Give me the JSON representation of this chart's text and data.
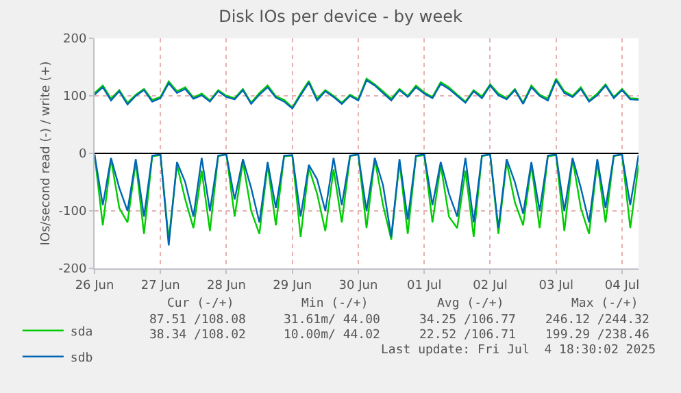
{
  "chart_data": {
    "type": "line",
    "title": "Disk IOs per device - by week",
    "ylabel": "IOs/second read (-) / write (+)",
    "x": [
      "2025-06-26T00:00",
      "2025-06-26T03:00",
      "2025-06-26T06:00",
      "2025-06-26T09:00",
      "2025-06-26T12:00",
      "2025-06-26T15:00",
      "2025-06-26T18:00",
      "2025-06-26T21:00",
      "2025-06-27T00:00",
      "2025-06-27T03:00",
      "2025-06-27T06:00",
      "2025-06-27T09:00",
      "2025-06-27T12:00",
      "2025-06-27T15:00",
      "2025-06-27T18:00",
      "2025-06-27T21:00",
      "2025-06-28T00:00",
      "2025-06-28T03:00",
      "2025-06-28T06:00",
      "2025-06-28T09:00",
      "2025-06-28T12:00",
      "2025-06-28T15:00",
      "2025-06-28T18:00",
      "2025-06-28T21:00",
      "2025-06-29T00:00",
      "2025-06-29T03:00",
      "2025-06-29T06:00",
      "2025-06-29T09:00",
      "2025-06-29T12:00",
      "2025-06-29T15:00",
      "2025-06-29T18:00",
      "2025-06-29T21:00",
      "2025-06-30T00:00",
      "2025-06-30T03:00",
      "2025-06-30T06:00",
      "2025-06-30T09:00",
      "2025-06-30T12:00",
      "2025-06-30T15:00",
      "2025-06-30T18:00",
      "2025-06-30T21:00",
      "2025-07-01T00:00",
      "2025-07-01T03:00",
      "2025-07-01T06:00",
      "2025-07-01T09:00",
      "2025-07-01T12:00",
      "2025-07-01T15:00",
      "2025-07-01T18:00",
      "2025-07-01T21:00",
      "2025-07-02T00:00",
      "2025-07-02T03:00",
      "2025-07-02T06:00",
      "2025-07-02T09:00",
      "2025-07-02T12:00",
      "2025-07-02T15:00",
      "2025-07-02T18:00",
      "2025-07-02T21:00",
      "2025-07-03T00:00",
      "2025-07-03T03:00",
      "2025-07-03T06:00",
      "2025-07-03T09:00",
      "2025-07-03T12:00",
      "2025-07-03T15:00",
      "2025-07-03T18:00",
      "2025-07-03T21:00",
      "2025-07-04T00:00",
      "2025-07-04T03:00",
      "2025-07-04T06:00"
    ],
    "series": [
      {
        "name": "sda",
        "color": "#00cc00",
        "values": [
          105,
          118,
          95,
          110,
          88,
          102,
          112,
          93,
          98,
          125,
          108,
          115,
          97,
          104,
          92,
          110,
          100,
          96,
          112,
          88,
          105,
          118,
          99,
          93,
          80,
          104,
          126,
          95,
          110,
          100,
          88,
          102,
          94,
          130,
          120,
          108,
          95,
          112,
          100,
          118,
          106,
          98,
          124,
          115,
          102,
          90,
          110,
          99,
          120,
          104,
          96,
          112,
          88,
          118,
          102,
          95,
          130,
          108,
          100,
          115,
          92,
          104,
          120,
          98,
          112,
          96,
          95
        ]
      },
      {
        "color": "#00cc00",
        "values": [
          -2,
          -125,
          -10,
          -95,
          -120,
          -15,
          -140,
          -5,
          -3,
          -150,
          -20,
          -80,
          -130,
          -30,
          -135,
          -5,
          -2,
          -110,
          -15,
          -100,
          -140,
          -20,
          -125,
          -5,
          -4,
          -145,
          -25,
          -70,
          -135,
          -28,
          -120,
          -5,
          -2,
          -130,
          -10,
          -90,
          -150,
          -15,
          -140,
          -5,
          -3,
          -120,
          -20,
          -110,
          -130,
          -30,
          -145,
          -5,
          -2,
          -140,
          -15,
          -85,
          -125,
          -20,
          -130,
          -5,
          -3,
          -135,
          -10,
          -95,
          -140,
          -15,
          -120,
          -5,
          -2,
          -130,
          -20
        ]
      },
      {
        "name": "sdb",
        "color": "#0066b3",
        "values": [
          102,
          115,
          92,
          108,
          85,
          100,
          110,
          90,
          96,
          122,
          105,
          112,
          95,
          101,
          90,
          108,
          98,
          94,
          110,
          86,
          102,
          115,
          97,
          90,
          78,
          101,
          123,
          92,
          108,
          98,
          86,
          100,
          92,
          127,
          118,
          105,
          92,
          110,
          98,
          115,
          104,
          96,
          121,
          112,
          100,
          88,
          108,
          96,
          118,
          101,
          94,
          110,
          86,
          115,
          100,
          92,
          127,
          105,
          98,
          112,
          90,
          101,
          118,
          96,
          110,
          94,
          93
        ]
      },
      {
        "color": "#0066b3",
        "values": [
          -2,
          -90,
          -8,
          -60,
          -100,
          -10,
          -110,
          -4,
          -2,
          -160,
          -15,
          -50,
          -110,
          -8,
          -100,
          -4,
          -2,
          -80,
          -10,
          -60,
          -120,
          -15,
          -95,
          -4,
          -3,
          -110,
          -20,
          -45,
          -100,
          -8,
          -90,
          -4,
          -2,
          -100,
          -8,
          -55,
          -145,
          -10,
          -115,
          -4,
          -2,
          -90,
          -15,
          -70,
          -110,
          -8,
          -120,
          -4,
          -2,
          -130,
          -10,
          -50,
          -105,
          -15,
          -100,
          -4,
          -2,
          -100,
          -8,
          -60,
          -120,
          -10,
          -95,
          -4,
          -2,
          -90,
          -3
        ]
      }
    ],
    "xlim": [
      "2025-06-26T00:00",
      "2025-07-04T06:00"
    ],
    "xticks": [
      {
        "value": "2025-06-26",
        "label": "26 Jun"
      },
      {
        "value": "2025-06-27",
        "label": "27 Jun"
      },
      {
        "value": "2025-06-28",
        "label": "28 Jun"
      },
      {
        "value": "2025-06-29",
        "label": "29 Jun"
      },
      {
        "value": "2025-06-30",
        "label": "30 Jun"
      },
      {
        "value": "2025-07-01",
        "label": "01 Jul"
      },
      {
        "value": "2025-07-02",
        "label": "02 Jul"
      },
      {
        "value": "2025-07-03",
        "label": "03 Jul"
      },
      {
        "value": "2025-07-04",
        "label": "04 Jul"
      }
    ],
    "ylim": [
      -200,
      200
    ],
    "yticks": [
      -200,
      -100,
      0,
      100,
      200
    ],
    "ref_lines": [
      {
        "axis": "y",
        "value": 0,
        "color": "#000000"
      }
    ],
    "grid": true,
    "legend": "bottom left",
    "marker": "none",
    "line_style": "solid",
    "annotations": [
      "Cur (-/+)",
      "Min (-/+)",
      "Avg (-/+)",
      "Max (-/+)",
      "87.51 /108.08",
      "31.61m/ 44.00",
      "34.25 /106.77",
      "246.12 /244.32",
      "38.34 /108.02",
      "10.00m/ 44.02",
      "22.52 /106.71",
      "199.29 /238.46",
      "Last update: Fri Jul  4 18:30:02 2025"
    ]
  }
}
